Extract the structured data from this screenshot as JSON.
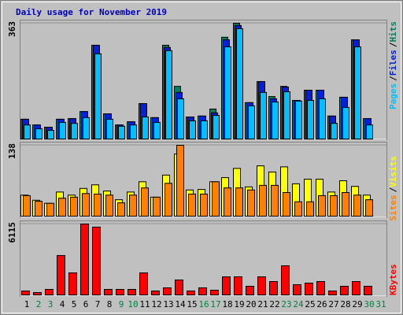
{
  "chart_data": [
    {
      "type": "bar",
      "title": "Daily usage for November 2019",
      "title_color": "#0000c0",
      "legend_separator": "/",
      "ylim": [
        0,
        363
      ],
      "yticks": [
        363
      ],
      "series": [
        {
          "name": "Pages",
          "color": "#00c0ff",
          "values": [
            44,
            32,
            27,
            52,
            49,
            67,
            267,
            62,
            40,
            44,
            69,
            52,
            277,
            126,
            57,
            57,
            74,
            289,
            346,
            104,
            146,
            116,
            148,
            119,
            121,
            126,
            49,
            99,
            289,
            44,
            0
          ]
        },
        {
          "name": "Files",
          "color": "#0020e0",
          "values": [
            62,
            44,
            37,
            62,
            64,
            86,
            294,
            79,
            44,
            54,
            111,
            67,
            287,
            146,
            69,
            72,
            82,
            311,
            356,
            114,
            180,
            126,
            163,
            121,
            153,
            153,
            72,
            131,
            311,
            64,
            0
          ]
        },
        {
          "name": "Hits",
          "color": "#008060",
          "values": [
            62,
            44,
            37,
            62,
            64,
            86,
            294,
            79,
            44,
            54,
            111,
            67,
            294,
            165,
            69,
            72,
            94,
            319,
            363,
            114,
            180,
            133,
            165,
            121,
            153,
            153,
            72,
            131,
            311,
            64,
            0
          ]
        }
      ]
    },
    {
      "type": "bar",
      "legend_separator": "/",
      "ylim": [
        0,
        138
      ],
      "yticks": [
        138
      ],
      "series": [
        {
          "name": "Sites",
          "color": "#ff8000",
          "values": [
            40,
            29,
            25,
            35,
            37,
            44,
            43,
            41,
            26,
            41,
            55,
            37,
            64,
            138,
            43,
            43,
            67,
            55,
            55,
            51,
            60,
            60,
            46,
            28,
            28,
            40,
            40,
            46,
            41,
            32,
            0
          ]
        },
        {
          "name": "Visits",
          "color": "#ffff00",
          "values": [
            41,
            31,
            25,
            47,
            41,
            54,
            61,
            49,
            32,
            47,
            67,
            37,
            80,
            121,
            51,
            52,
            67,
            75,
            93,
            57,
            98,
            86,
            96,
            63,
            72,
            72,
            47,
            69,
            58,
            41,
            0
          ]
        }
      ]
    },
    {
      "type": "bar",
      "ylim": [
        0,
        6115
      ],
      "yticks": [
        6115
      ],
      "categories": [
        "1",
        "2",
        "3",
        "4",
        "5",
        "6",
        "7",
        "8",
        "9",
        "10",
        "11",
        "12",
        "13",
        "14",
        "15",
        "16",
        "17",
        "18",
        "19",
        "20",
        "21",
        "22",
        "23",
        "24",
        "25",
        "26",
        "27",
        "28",
        "29",
        "30",
        "31"
      ],
      "category_colors": [
        "#000000",
        "#008040",
        "#008040",
        "#000000",
        "#000000",
        "#000000",
        "#000000",
        "#000000",
        "#008040",
        "#008040",
        "#000000",
        "#000000",
        "#000000",
        "#000000",
        "#000000",
        "#008040",
        "#008040",
        "#000000",
        "#000000",
        "#000000",
        "#000000",
        "#000000",
        "#008040",
        "#008040",
        "#000000",
        "#000000",
        "#000000",
        "#000000",
        "#000000",
        "#008040",
        "#008040"
      ],
      "series": [
        {
          "name": "KBytes",
          "color": "#ff0000",
          "values": [
            340,
            204,
            476,
            3400,
            1900,
            6115,
            5850,
            476,
            476,
            476,
            1900,
            340,
            612,
            1290,
            340,
            612,
            408,
            1560,
            1560,
            748,
            1560,
            1155,
            2515,
            884,
            1020,
            1155,
            340,
            748,
            1155,
            748,
            0
          ]
        }
      ]
    }
  ]
}
